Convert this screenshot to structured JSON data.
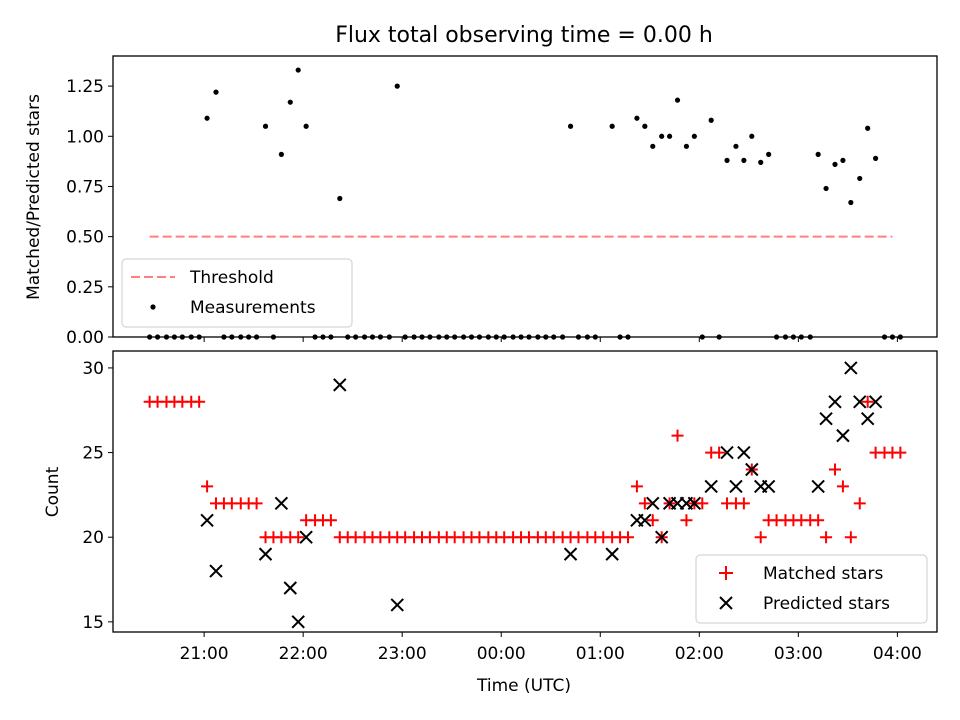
{
  "title": "Flux total observing time = 0.00 h",
  "colors": {
    "threshold": "#ff7f7f",
    "measurements": "#000000",
    "matched": "#ff0000",
    "predicted": "#000000"
  },
  "x_tick_labels": [
    "21:00",
    "22:00",
    "23:00",
    "00:00",
    "01:00",
    "02:00",
    "03:00",
    "04:00"
  ],
  "chart_data": [
    {
      "type": "scatter",
      "panel": "top",
      "title": "Flux total observing time = 0.00 h",
      "xlabel": "",
      "ylabel": "Matched/Predicted stars",
      "x_unit": "hours after 21:00 UTC (x axis labeled in UTC times)",
      "xlim": [
        -0.92,
        7.4
      ],
      "ylim": [
        0.0,
        1.4
      ],
      "yticks": [
        "0.00",
        "0.25",
        "0.50",
        "0.75",
        "1.00",
        "1.25"
      ],
      "legend_position": "lower-left",
      "legend": [
        "Threshold",
        "Measurements"
      ],
      "series": [
        {
          "name": "Threshold",
          "kind": "dashed-line",
          "x": [
            -0.55,
            6.95
          ],
          "y": [
            0.5,
            0.5
          ]
        },
        {
          "name": "Measurements",
          "kind": "points",
          "points": [
            [
              -0.55,
              0
            ],
            [
              -0.47,
              0
            ],
            [
              -0.38,
              0
            ],
            [
              -0.3,
              0
            ],
            [
              -0.22,
              0
            ],
            [
              -0.13,
              0
            ],
            [
              -0.05,
              0
            ],
            [
              0.03,
              1.09
            ],
            [
              0.12,
              1.22
            ],
            [
              0.2,
              0
            ],
            [
              0.28,
              0
            ],
            [
              0.37,
              0
            ],
            [
              0.45,
              0
            ],
            [
              0.53,
              0
            ],
            [
              0.62,
              1.05
            ],
            [
              0.7,
              0
            ],
            [
              0.78,
              0.91
            ],
            [
              0.87,
              1.17
            ],
            [
              0.95,
              1.33
            ],
            [
              1.03,
              1.05
            ],
            [
              1.12,
              0
            ],
            [
              1.2,
              0
            ],
            [
              1.28,
              0
            ],
            [
              1.37,
              0.69
            ],
            [
              1.45,
              0
            ],
            [
              1.53,
              0
            ],
            [
              1.62,
              0
            ],
            [
              1.7,
              0
            ],
            [
              1.78,
              0
            ],
            [
              1.87,
              0
            ],
            [
              1.95,
              1.25
            ],
            [
              2.03,
              0
            ],
            [
              2.12,
              0
            ],
            [
              2.2,
              0
            ],
            [
              2.28,
              0
            ],
            [
              2.37,
              0
            ],
            [
              2.45,
              0
            ],
            [
              2.53,
              0
            ],
            [
              2.62,
              0
            ],
            [
              2.7,
              0
            ],
            [
              2.78,
              0
            ],
            [
              2.87,
              0
            ],
            [
              2.95,
              0
            ],
            [
              3.03,
              0
            ],
            [
              3.12,
              0
            ],
            [
              3.2,
              0
            ],
            [
              3.28,
              0
            ],
            [
              3.37,
              0
            ],
            [
              3.45,
              0
            ],
            [
              3.53,
              0
            ],
            [
              3.62,
              0
            ],
            [
              3.7,
              1.05
            ],
            [
              3.78,
              0
            ],
            [
              3.87,
              0
            ],
            [
              3.95,
              0
            ],
            [
              4.12,
              1.05
            ],
            [
              4.2,
              0
            ],
            [
              4.28,
              0
            ],
            [
              4.37,
              1.09
            ],
            [
              4.45,
              1.05
            ],
            [
              4.53,
              0.95
            ],
            [
              4.62,
              1.0
            ],
            [
              4.7,
              1.0
            ],
            [
              4.78,
              1.18
            ],
            [
              4.87,
              0.95
            ],
            [
              4.95,
              1.0
            ],
            [
              5.03,
              0
            ],
            [
              5.12,
              1.08
            ],
            [
              5.2,
              0
            ],
            [
              5.28,
              0.88
            ],
            [
              5.37,
              0.95
            ],
            [
              5.45,
              0.88
            ],
            [
              5.53,
              1.0
            ],
            [
              5.62,
              0.87
            ],
            [
              5.7,
              0.91
            ],
            [
              5.78,
              0
            ],
            [
              5.87,
              0
            ],
            [
              5.95,
              0
            ],
            [
              6.03,
              0
            ],
            [
              6.12,
              0
            ],
            [
              6.2,
              0.91
            ],
            [
              6.28,
              0.74
            ],
            [
              6.37,
              0.86
            ],
            [
              6.45,
              0.88
            ],
            [
              6.53,
              0.67
            ],
            [
              6.62,
              0.79
            ],
            [
              6.7,
              1.04
            ],
            [
              6.78,
              0.89
            ],
            [
              6.87,
              0
            ],
            [
              6.95,
              0
            ],
            [
              7.03,
              0
            ]
          ]
        }
      ]
    },
    {
      "type": "scatter",
      "panel": "bottom",
      "xlabel": "Time (UTC)",
      "ylabel": "Count",
      "x_unit": "hours after 21:00 UTC (x axis labeled in UTC times)",
      "xlim": [
        -0.92,
        7.4
      ],
      "ylim": [
        14.4,
        31.0
      ],
      "yticks": [
        "15",
        "20",
        "25",
        "30"
      ],
      "legend_position": "lower-right",
      "legend": [
        "Matched stars",
        "Predicted stars"
      ],
      "series": [
        {
          "name": "Matched stars",
          "marker": "+",
          "points": [
            [
              -0.55,
              28
            ],
            [
              -0.47,
              28
            ],
            [
              -0.38,
              28
            ],
            [
              -0.3,
              28
            ],
            [
              -0.22,
              28
            ],
            [
              -0.13,
              28
            ],
            [
              -0.05,
              28
            ],
            [
              0.03,
              23
            ],
            [
              0.12,
              22
            ],
            [
              0.2,
              22
            ],
            [
              0.28,
              22
            ],
            [
              0.37,
              22
            ],
            [
              0.45,
              22
            ],
            [
              0.53,
              22
            ],
            [
              0.62,
              20
            ],
            [
              0.7,
              20
            ],
            [
              0.78,
              20
            ],
            [
              0.87,
              20
            ],
            [
              0.95,
              20
            ],
            [
              1.03,
              21
            ],
            [
              1.12,
              21
            ],
            [
              1.2,
              21
            ],
            [
              1.28,
              21
            ],
            [
              1.37,
              20
            ],
            [
              1.45,
              20
            ],
            [
              1.53,
              20
            ],
            [
              1.62,
              20
            ],
            [
              1.7,
              20
            ],
            [
              1.78,
              20
            ],
            [
              1.87,
              20
            ],
            [
              1.95,
              20
            ],
            [
              2.03,
              20
            ],
            [
              2.12,
              20
            ],
            [
              2.2,
              20
            ],
            [
              2.28,
              20
            ],
            [
              2.37,
              20
            ],
            [
              2.45,
              20
            ],
            [
              2.53,
              20
            ],
            [
              2.62,
              20
            ],
            [
              2.7,
              20
            ],
            [
              2.78,
              20
            ],
            [
              2.87,
              20
            ],
            [
              2.95,
              20
            ],
            [
              3.03,
              20
            ],
            [
              3.12,
              20
            ],
            [
              3.2,
              20
            ],
            [
              3.28,
              20
            ],
            [
              3.37,
              20
            ],
            [
              3.45,
              20
            ],
            [
              3.53,
              20
            ],
            [
              3.62,
              20
            ],
            [
              3.7,
              20
            ],
            [
              3.78,
              20
            ],
            [
              3.87,
              20
            ],
            [
              3.95,
              20
            ],
            [
              4.03,
              20
            ],
            [
              4.12,
              20
            ],
            [
              4.2,
              20
            ],
            [
              4.28,
              20
            ],
            [
              4.37,
              23
            ],
            [
              4.45,
              22
            ],
            [
              4.53,
              21
            ],
            [
              4.62,
              20
            ],
            [
              4.7,
              22
            ],
            [
              4.78,
              26
            ],
            [
              4.87,
              21
            ],
            [
              4.95,
              22
            ],
            [
              5.03,
              22
            ],
            [
              5.12,
              25
            ],
            [
              5.2,
              25
            ],
            [
              5.28,
              22
            ],
            [
              5.37,
              22
            ],
            [
              5.45,
              22
            ],
            [
              5.53,
              24
            ],
            [
              5.62,
              20
            ],
            [
              5.7,
              21
            ],
            [
              5.78,
              21
            ],
            [
              5.87,
              21
            ],
            [
              5.95,
              21
            ],
            [
              6.03,
              21
            ],
            [
              6.12,
              21
            ],
            [
              6.2,
              21
            ],
            [
              6.28,
              20
            ],
            [
              6.37,
              24
            ],
            [
              6.45,
              23
            ],
            [
              6.53,
              20
            ],
            [
              6.62,
              22
            ],
            [
              6.7,
              28
            ],
            [
              6.78,
              25
            ],
            [
              6.87,
              25
            ],
            [
              6.95,
              25
            ],
            [
              7.03,
              25
            ]
          ]
        },
        {
          "name": "Predicted stars",
          "marker": "x",
          "points": [
            [
              0.03,
              21
            ],
            [
              0.12,
              18
            ],
            [
              0.62,
              19
            ],
            [
              0.78,
              22
            ],
            [
              0.87,
              17
            ],
            [
              0.95,
              15
            ],
            [
              1.03,
              20
            ],
            [
              1.37,
              29
            ],
            [
              1.95,
              16
            ],
            [
              3.7,
              19
            ],
            [
              4.12,
              19
            ],
            [
              4.37,
              21
            ],
            [
              4.45,
              21
            ],
            [
              4.53,
              22
            ],
            [
              4.62,
              20
            ],
            [
              4.7,
              22
            ],
            [
              4.78,
              22
            ],
            [
              4.87,
              22
            ],
            [
              4.95,
              22
            ],
            [
              5.12,
              23
            ],
            [
              5.28,
              25
            ],
            [
              5.37,
              23
            ],
            [
              5.45,
              25
            ],
            [
              5.53,
              24
            ],
            [
              5.62,
              23
            ],
            [
              5.7,
              23
            ],
            [
              6.2,
              23
            ],
            [
              6.28,
              27
            ],
            [
              6.37,
              28
            ],
            [
              6.45,
              26
            ],
            [
              6.53,
              30
            ],
            [
              6.62,
              28
            ],
            [
              6.7,
              27
            ],
            [
              6.78,
              28
            ]
          ]
        }
      ]
    }
  ]
}
